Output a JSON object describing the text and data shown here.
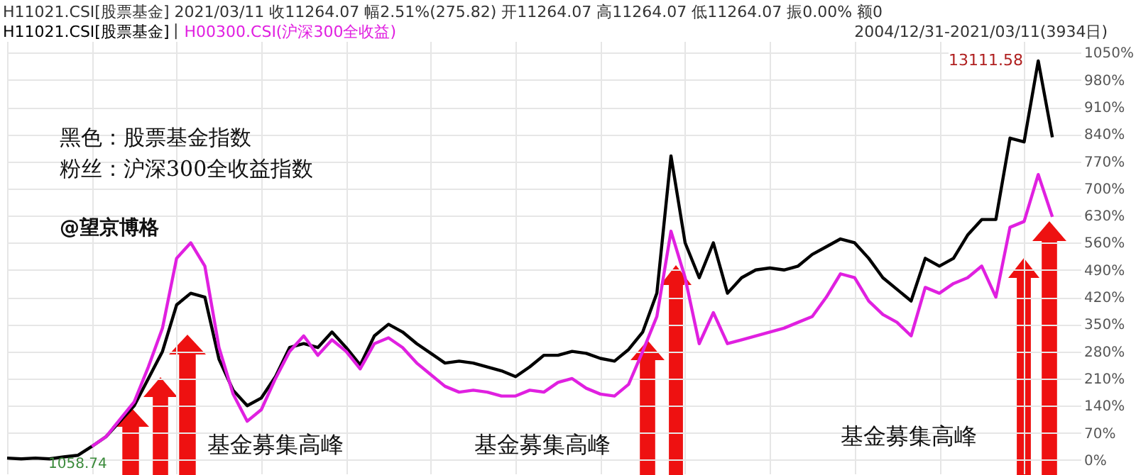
{
  "chart_data": {
    "type": "line",
    "title": "H11021.CSI[股票基金]  2021/03/11  收11264.07  幅2.51%(275.82)  开11264.07  高11264.07  低11264.07  振0.00%  额0",
    "categories": [
      null,
      null,
      null,
      null,
      null,
      null,
      null,
      null,
      null,
      null,
      null,
      null,
      null,
      null,
      null,
      null,
      null,
      null,
      null,
      null,
      null,
      null,
      null,
      null,
      null,
      null,
      null,
      null,
      null,
      null,
      null,
      null,
      null,
      null,
      null,
      null,
      null,
      null,
      null,
      null,
      null,
      null,
      null,
      null,
      null,
      null,
      null,
      null,
      null,
      null,
      null,
      null,
      null,
      null,
      null,
      null,
      null,
      null,
      null,
      null,
      null,
      null,
      null,
      null,
      null,
      null,
      null,
      null,
      null,
      null,
      null,
      null,
      null,
      null,
      null
    ],
    "series": [
      {
        "name": "H11021.CSI[股票基金]",
        "color": "#000000",
        "values": [
          5,
          3,
          5,
          3,
          8,
          12,
          35,
          60,
          100,
          140,
          210,
          280,
          400,
          430,
          420,
          260,
          180,
          140,
          160,
          215,
          290,
          300,
          290,
          330,
          290,
          245,
          320,
          350,
          330,
          300,
          275,
          250,
          255,
          250,
          240,
          230,
          215,
          240,
          270,
          270,
          280,
          275,
          262,
          255,
          285,
          330,
          430,
          784,
          560,
          470,
          560,
          430,
          470,
          490,
          495,
          490,
          500,
          530,
          550,
          570,
          560,
          520,
          470,
          440,
          410,
          520,
          500,
          520,
          580,
          620,
          620,
          830,
          820,
          1029,
          832
        ]
      },
      {
        "name": "H00300.CSI(沪深300全收益)",
        "color": "#e020e0",
        "values": [
          null,
          null,
          null,
          null,
          null,
          null,
          35,
          60,
          105,
          150,
          240,
          340,
          520,
          560,
          500,
          290,
          170,
          100,
          130,
          210,
          280,
          320,
          270,
          310,
          280,
          235,
          300,
          315,
          290,
          250,
          220,
          190,
          175,
          180,
          175,
          165,
          165,
          180,
          175,
          200,
          210,
          185,
          170,
          165,
          195,
          280,
          370,
          590,
          470,
          300,
          380,
          300,
          310,
          320,
          330,
          340,
          355,
          370,
          420,
          480,
          470,
          410,
          375,
          355,
          320,
          445,
          430,
          455,
          470,
          500,
          420,
          600,
          615,
          736,
          627
        ]
      }
    ],
    "ylim": [
      -35,
      1080
    ],
    "yticks": [
      {
        "value": 0,
        "label": "0%"
      },
      {
        "value": 70,
        "label": "70%"
      },
      {
        "value": 140,
        "label": "140%"
      },
      {
        "value": 210,
        "label": "210%"
      },
      {
        "value": 280,
        "label": "280%"
      },
      {
        "value": 350,
        "label": "350%"
      },
      {
        "value": 420,
        "label": "420%"
      },
      {
        "value": 490,
        "label": "490%"
      },
      {
        "value": 560,
        "label": "560%"
      },
      {
        "value": 630,
        "label": "630%"
      },
      {
        "value": 700,
        "label": "700%"
      },
      {
        "value": 770,
        "label": "770%"
      },
      {
        "value": 840,
        "label": "840%"
      },
      {
        "value": 910,
        "label": "910%"
      },
      {
        "value": 980,
        "label": "980%"
      },
      {
        "value": 1050,
        "label": "1050%"
      }
    ],
    "grid": true,
    "legend": "top left",
    "marker": "none",
    "line_style": "solid",
    "annotations": [
      "|",
      "2004/12/31-2021/03/11(3934日)",
      "黑色：股票基金指数",
      "粉丝：沪深300全收益指数",
      "@望京博格",
      "基金募集高峰",
      "基金募集高峰",
      "基金募集高峰",
      "13111.58",
      "1058.74"
    ]
  }
}
